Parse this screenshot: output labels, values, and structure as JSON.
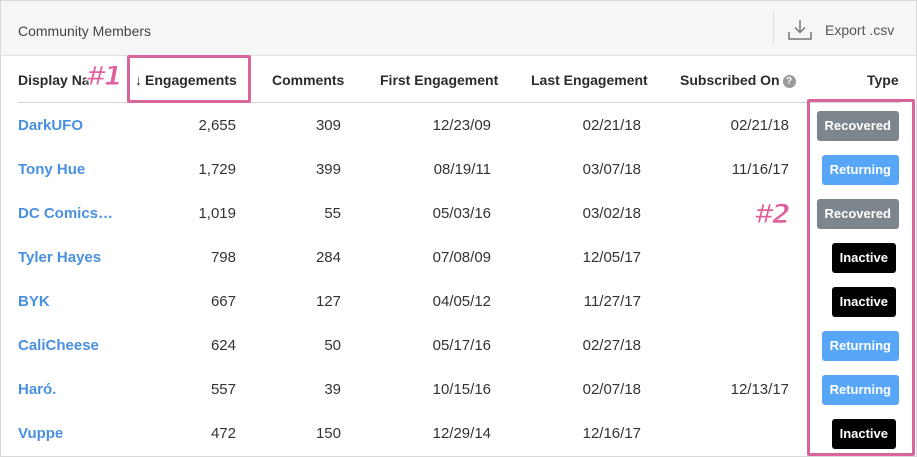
{
  "panel": {
    "title": "Community Members",
    "export_label": "Export .csv",
    "export_icon": "download-icon"
  },
  "columns": {
    "display_name": "Display Na",
    "engagements": "Engagements",
    "comments": "Comments",
    "first_engagement": "First Engagement",
    "last_engagement": "Last Engagement",
    "subscribed_on": "Subscribed On",
    "type": "Type",
    "sort_arrow": "↓",
    "help_icon": "?"
  },
  "rows": [
    {
      "name": "DarkUFO",
      "engagements": "2,655",
      "comments": "309",
      "first": "12/23/09",
      "last": "02/21/18",
      "subscribed": "02/21/18",
      "type": "Recovered"
    },
    {
      "name": "Tony Hue",
      "engagements": "1,729",
      "comments": "399",
      "first": "08/19/11",
      "last": "03/07/18",
      "subscribed": "11/16/17",
      "type": "Returning"
    },
    {
      "name": "DC Comics…",
      "engagements": "1,019",
      "comments": "55",
      "first": "05/03/16",
      "last": "03/02/18",
      "subscribed": "",
      "type": "Recovered"
    },
    {
      "name": "Tyler Hayes",
      "engagements": "798",
      "comments": "284",
      "first": "07/08/09",
      "last": "12/05/17",
      "subscribed": "",
      "type": "Inactive"
    },
    {
      "name": "BYK",
      "engagements": "667",
      "comments": "127",
      "first": "04/05/12",
      "last": "11/27/17",
      "subscribed": "",
      "type": "Inactive"
    },
    {
      "name": "CaliCheese",
      "engagements": "624",
      "comments": "50",
      "first": "05/17/16",
      "last": "02/27/18",
      "subscribed": "",
      "type": "Returning"
    },
    {
      "name": "Haró.",
      "engagements": "557",
      "comments": "39",
      "first": "10/15/16",
      "last": "02/07/18",
      "subscribed": "12/13/17",
      "type": "Returning"
    },
    {
      "name": "Vuppe",
      "engagements": "472",
      "comments": "150",
      "first": "12/29/14",
      "last": "12/16/17",
      "subscribed": "",
      "type": "Inactive"
    }
  ],
  "annotations": {
    "one": "#1",
    "two": "#2",
    "color": "#d9669a"
  },
  "colors": {
    "link": "#4a90e2",
    "recovered": "#7d858d",
    "returning": "#58a6f8",
    "inactive": "#000000"
  }
}
